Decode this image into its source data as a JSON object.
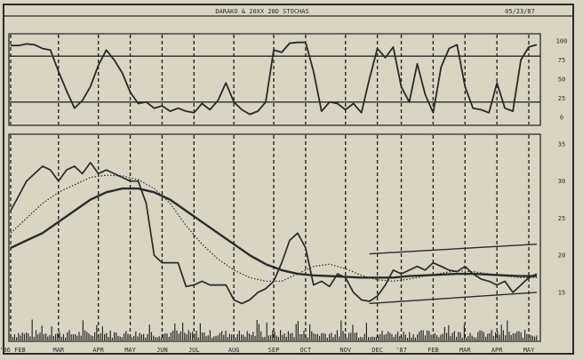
{
  "header": {
    "title": "DARAKO & 20XX 28D STOCHAS",
    "date": "05/23/87"
  },
  "chart_data": [
    {
      "type": "line",
      "title": "",
      "panel": "stochastic",
      "ylim": [
        0,
        100
      ],
      "yticks": [
        0,
        25,
        50,
        75,
        100
      ],
      "reference_lines": [
        20,
        80
      ],
      "x_start": 0,
      "x_end": 66,
      "series": [
        {
          "values": [
            [
              0,
              94
            ],
            [
              1,
              94
            ],
            [
              2,
              96
            ],
            [
              3,
              95
            ],
            [
              4,
              90
            ],
            [
              5,
              88
            ],
            [
              6,
              60
            ],
            [
              7,
              35
            ],
            [
              8,
              12
            ],
            [
              9,
              22
            ],
            [
              10,
              40
            ],
            [
              11,
              68
            ],
            [
              12,
              88
            ],
            [
              13,
              75
            ],
            [
              14,
              58
            ],
            [
              15,
              33
            ],
            [
              16,
              18
            ],
            [
              17,
              20
            ],
            [
              18,
              12
            ],
            [
              19,
              15
            ],
            [
              20,
              8
            ],
            [
              21,
              12
            ],
            [
              22,
              8
            ],
            [
              23,
              6
            ],
            [
              24,
              18
            ],
            [
              25,
              10
            ],
            [
              26,
              22
            ],
            [
              27,
              45
            ],
            [
              28,
              20
            ],
            [
              29,
              10
            ],
            [
              30,
              4
            ],
            [
              31,
              8
            ],
            [
              32,
              20
            ],
            [
              33,
              88
            ],
            [
              34,
              85
            ],
            [
              35,
              97
            ],
            [
              36,
              98
            ],
            [
              37,
              98
            ],
            [
              38,
              60
            ],
            [
              39,
              8
            ],
            [
              40,
              20
            ],
            [
              41,
              18
            ],
            [
              42,
              10
            ],
            [
              43,
              18
            ],
            [
              44,
              6
            ],
            [
              45,
              50
            ],
            [
              46,
              90
            ],
            [
              47,
              78
            ],
            [
              48,
              92
            ],
            [
              49,
              40
            ],
            [
              50,
              20
            ],
            [
              51,
              70
            ],
            [
              52,
              30
            ],
            [
              53,
              6
            ],
            [
              54,
              66
            ],
            [
              55,
              90
            ],
            [
              56,
              95
            ],
            [
              57,
              40
            ],
            [
              58,
              12
            ],
            [
              59,
              10
            ],
            [
              60,
              6
            ],
            [
              61,
              45
            ],
            [
              62,
              12
            ],
            [
              63,
              8
            ],
            [
              64,
              75
            ],
            [
              65,
              92
            ],
            [
              66,
              95
            ]
          ]
        }
      ]
    },
    {
      "type": "line",
      "title": "",
      "panel": "price",
      "ylim": [
        12,
        35
      ],
      "yticks": [
        15,
        20,
        25,
        30,
        35
      ],
      "ytick_labels": [
        "15",
        "20",
        "25",
        "30",
        "35"
      ],
      "x_start": 0,
      "x_end": 66,
      "xtick_labels": [
        "'86 FEB",
        "MAR",
        "APR",
        "MAY",
        "JUN",
        "JUL",
        "AUG",
        "SEP",
        "OCT",
        "NOV",
        "DEC",
        "'87",
        "FEB",
        "MAR",
        "APR",
        "MAY"
      ],
      "xtick_positions": [
        0,
        6,
        11,
        15,
        19,
        23,
        28,
        33,
        37,
        42,
        46,
        49,
        53,
        57,
        61,
        65
      ],
      "series": [
        {
          "values": [
            [
              0,
              26
            ],
            [
              1,
              28
            ],
            [
              2,
              30
            ],
            [
              3,
              31
            ],
            [
              4,
              32
            ],
            [
              5,
              31.5
            ],
            [
              6,
              30
            ],
            [
              7,
              31.5
            ],
            [
              8,
              32
            ],
            [
              9,
              31
            ],
            [
              10,
              32.5
            ],
            [
              11,
              31
            ],
            [
              12,
              31.5
            ],
            [
              13,
              31
            ],
            [
              14,
              30.5
            ],
            [
              15,
              30
            ],
            [
              16,
              30
            ],
            [
              17,
              27
            ],
            [
              18,
              20
            ],
            [
              19,
              19
            ],
            [
              20,
              19
            ],
            [
              21,
              19
            ],
            [
              22,
              15.8
            ],
            [
              23,
              16
            ],
            [
              24,
              16.5
            ],
            [
              25,
              16
            ],
            [
              26,
              16
            ],
            [
              27,
              16
            ],
            [
              28,
              14
            ],
            [
              29,
              13.5
            ],
            [
              30,
              14
            ],
            [
              31,
              15
            ],
            [
              32,
              15.5
            ],
            [
              33,
              16.5
            ],
            [
              34,
              19
            ],
            [
              35,
              22
            ],
            [
              36,
              23
            ],
            [
              37,
              21
            ],
            [
              38,
              16
            ],
            [
              39,
              16.5
            ],
            [
              40,
              15.8
            ],
            [
              41,
              17.5
            ],
            [
              42,
              17
            ],
            [
              43,
              15
            ],
            [
              44,
              14
            ],
            [
              45,
              13.8
            ],
            [
              46,
              14.5
            ],
            [
              47,
              16
            ],
            [
              48,
              18
            ],
            [
              49,
              17.5
            ],
            [
              50,
              18
            ],
            [
              51,
              18.5
            ],
            [
              52,
              18
            ],
            [
              53,
              19
            ],
            [
              54,
              18.5
            ],
            [
              55,
              18
            ],
            [
              56,
              17.8
            ],
            [
              57,
              18.5
            ],
            [
              58,
              17.5
            ],
            [
              59,
              16.8
            ],
            [
              60,
              16.5
            ],
            [
              61,
              16
            ],
            [
              62,
              16.5
            ],
            [
              63,
              15
            ],
            [
              64,
              16
            ],
            [
              65,
              17
            ],
            [
              66,
              17.5
            ]
          ]
        },
        {
          "style": "dotted",
          "values": [
            [
              0,
              23
            ],
            [
              2,
              25
            ],
            [
              4,
              27
            ],
            [
              6,
              28.5
            ],
            [
              8,
              29.5
            ],
            [
              10,
              30.5
            ],
            [
              12,
              30.8
            ],
            [
              14,
              30.7
            ],
            [
              16,
              30.2
            ],
            [
              18,
              29
            ],
            [
              20,
              27
            ],
            [
              22,
              24
            ],
            [
              24,
              21.5
            ],
            [
              26,
              19.5
            ],
            [
              28,
              18
            ],
            [
              30,
              17
            ],
            [
              32,
              16.5
            ],
            [
              34,
              16.5
            ],
            [
              36,
              17.5
            ],
            [
              38,
              18.5
            ],
            [
              40,
              18.8
            ],
            [
              42,
              18.2
            ],
            [
              44,
              17.3
            ],
            [
              46,
              16.7
            ],
            [
              48,
              16.5
            ],
            [
              50,
              16.8
            ],
            [
              52,
              17.2
            ],
            [
              54,
              17.6
            ],
            [
              56,
              17.9
            ],
            [
              58,
              17.8
            ],
            [
              60,
              17.5
            ],
            [
              62,
              17.2
            ],
            [
              64,
              17
            ],
            [
              66,
              17
            ]
          ]
        },
        {
          "style": "bold",
          "values": [
            [
              0,
              21
            ],
            [
              2,
              22
            ],
            [
              4,
              23
            ],
            [
              6,
              24.5
            ],
            [
              8,
              26
            ],
            [
              10,
              27.5
            ],
            [
              12,
              28.5
            ],
            [
              14,
              29
            ],
            [
              16,
              29
            ],
            [
              18,
              28.5
            ],
            [
              20,
              27.5
            ],
            [
              22,
              26
            ],
            [
              24,
              24.5
            ],
            [
              26,
              23
            ],
            [
              28,
              21.5
            ],
            [
              30,
              20
            ],
            [
              32,
              18.8
            ],
            [
              34,
              18
            ],
            [
              36,
              17.5
            ],
            [
              38,
              17.3
            ],
            [
              40,
              17.2
            ],
            [
              42,
              17.1
            ],
            [
              44,
              17
            ],
            [
              46,
              17
            ],
            [
              48,
              17
            ],
            [
              50,
              17.2
            ],
            [
              52,
              17.3
            ],
            [
              54,
              17.4
            ],
            [
              56,
              17.5
            ],
            [
              58,
              17.5
            ],
            [
              60,
              17.4
            ],
            [
              62,
              17.3
            ],
            [
              64,
              17.2
            ],
            [
              66,
              17.2
            ]
          ]
        }
      ],
      "trend_channel": [
        {
          "x": [
            45,
            66
          ],
          "y": [
            20.2,
            21.5
          ]
        },
        {
          "x": [
            45,
            66
          ],
          "y": [
            13.5,
            15
          ]
        }
      ]
    }
  ]
}
